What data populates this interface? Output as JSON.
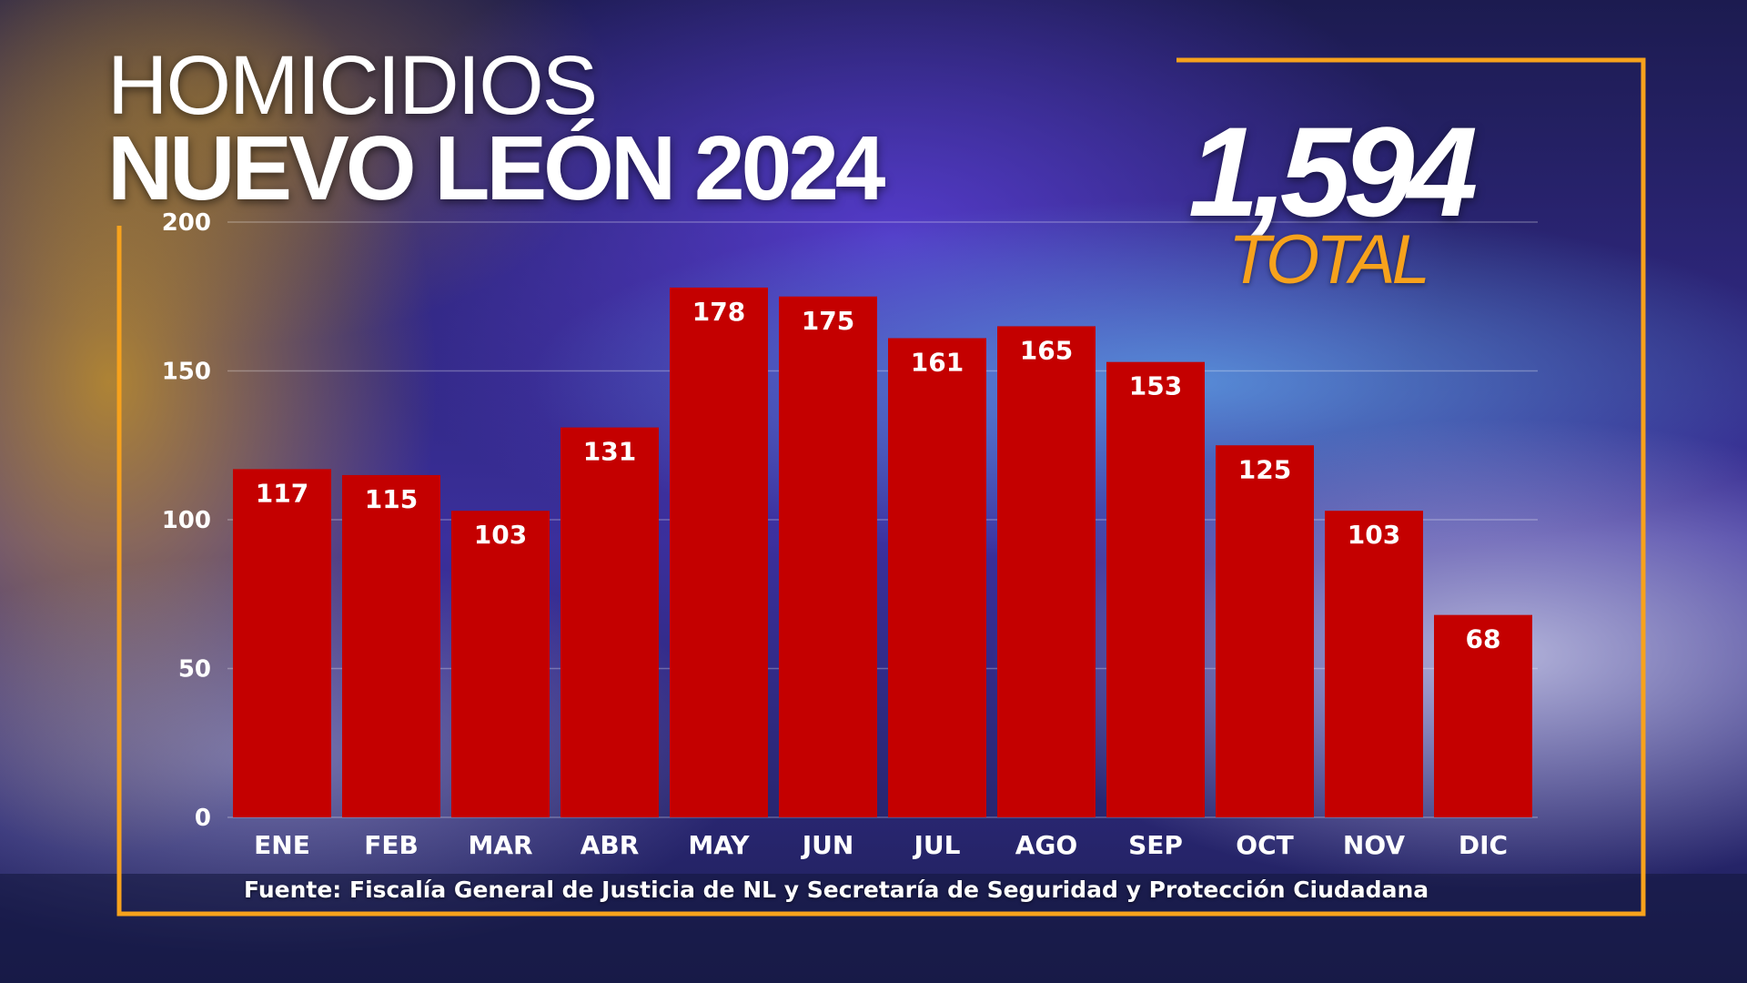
{
  "title_line1": "HOMICIDIOS",
  "title_line2": "NUEVO LEÓN 2024",
  "total": {
    "value": "1,594",
    "label": "TOTAL"
  },
  "source": "Fuente: Fiscalía General de Justicia de NL y Secretaría de Seguridad y Protección Ciudadana",
  "colors": {
    "bar": "#c40000",
    "frame": "#f7a21c",
    "text": "#ffffff",
    "total_label": "#f7a21c"
  },
  "chart_data": {
    "type": "bar",
    "categories": [
      "ENE",
      "FEB",
      "MAR",
      "ABR",
      "MAY",
      "JUN",
      "JUL",
      "AGO",
      "SEP",
      "OCT",
      "NOV",
      "DIC"
    ],
    "values": [
      117,
      115,
      103,
      131,
      178,
      175,
      161,
      165,
      153,
      125,
      103,
      68
    ],
    "ylim": [
      0,
      200
    ],
    "yticks": [
      0,
      50,
      100,
      150,
      200
    ],
    "data_labels": true,
    "grid": true,
    "xlabel": "",
    "ylabel": ""
  }
}
